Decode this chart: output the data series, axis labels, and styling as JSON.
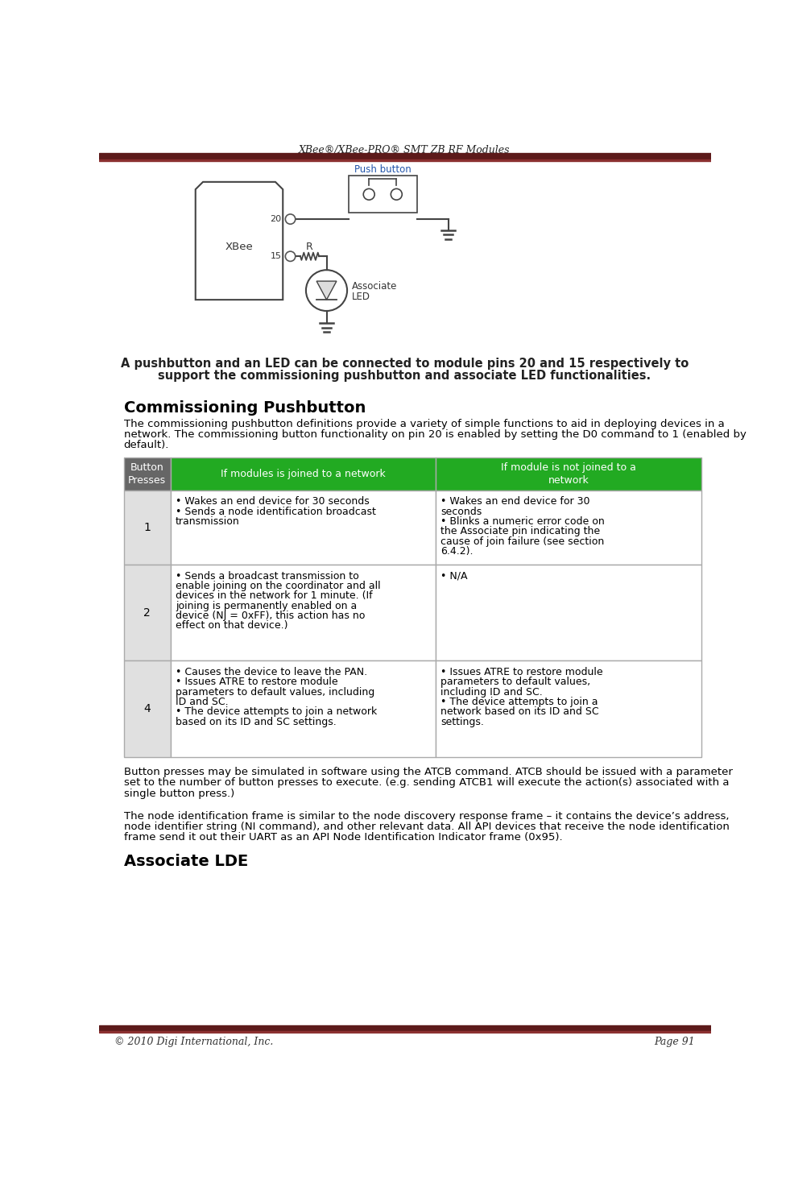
{
  "title": "XBee®/XBee-PRO® SMT ZB RF Modules",
  "header_bar_color": "#5C1A1A",
  "footer_bar_color": "#5C1A1A",
  "footer_left": "© 2010 Digi International, Inc.",
  "footer_right": "Page 91",
  "caption_line1": "A pushbutton and an LED can be connected to module pins 20 and 15 respectively to",
  "caption_line2": "support the commissioning pushbutton and associate LED functionalities.",
  "section_title": "Commissioning Pushbutton",
  "section_intro_lines": [
    "The commissioning pushbutton definitions provide a variety of simple functions to aid in deploying devices in a",
    "network. The commissioning button functionality on pin 20 is enabled by setting the D0 command to 1 (enabled by",
    "default)."
  ],
  "table_header_bg": "#22AA22",
  "table_col0_bg": "#666666",
  "table_border_color": "#888888",
  "col_headers": [
    "Button\nPresses",
    "If modules is joined to a network",
    "If module is not joined to a\nnetwork"
  ],
  "rows": [
    {
      "press": "1",
      "joined": "• Wakes an end device for 30 seconds\n• Sends a node identification broadcast\ntransmission",
      "not_joined": "• Wakes an end device for 30\nseconds\n• Blinks a numeric error code on\nthe Associate pin indicating the\ncause of join failure (see section\n6.4.2)."
    },
    {
      "press": "2",
      "joined": "• Sends a broadcast transmission to\nenable joining on the coordinator and all\ndevices in the network for 1 minute. (If\njoining is permanently enabled on a\ndevice (NJ = 0xFF), this action has no\neffect on that device.)",
      "not_joined": "• N/A"
    },
    {
      "press": "4",
      "joined": "• Causes the device to leave the PAN.\n• Issues ATRE to restore module\nparameters to default values, including\nID and SC.\n• The device attempts to join a network\nbased on its ID and SC settings.",
      "not_joined": "• Issues ATRE to restore module\nparameters to default values,\nincluding ID and SC.\n• The device attempts to join a\nnetwork based on its ID and SC\nsettings."
    }
  ],
  "para1_lines": [
    "Button presses may be simulated in software using the ATCB command. ATCB should be issued with a parameter",
    "set to the number of button presses to execute. (e.g. sending ATCB1 will execute the action(s) associated with a",
    "single button press.)"
  ],
  "para2_lines": [
    "The node identification frame is similar to the node discovery response frame – it contains the device’s address,",
    "node identifier string (NI command), and other relevant data. All API devices that receive the node identification",
    "frame send it out their UART as an API Node Identification Indicator frame (0x95)."
  ],
  "assoc_title": "Associate LDE",
  "bg_color": "#FFFFFF"
}
